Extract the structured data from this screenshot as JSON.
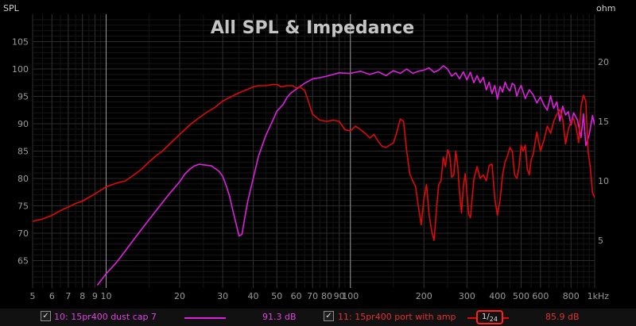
{
  "chart_data": {
    "type": "line",
    "title": "All SPL & Impedance",
    "ylabel_left": "SPL",
    "ylabel_right": "ohm",
    "x_scale": "log",
    "xlim": [
      5,
      1000
    ],
    "ylim_left": [
      60,
      110
    ],
    "ylim_right": [
      1,
      24
    ],
    "grid": true,
    "x_ticks": [
      {
        "v": 5,
        "label": "5"
      },
      {
        "v": 6,
        "label": "6"
      },
      {
        "v": 7,
        "label": "7"
      },
      {
        "v": 8,
        "label": "8"
      },
      {
        "v": 9,
        "label": "9"
      },
      {
        "v": 10,
        "label": "10"
      },
      {
        "v": 20,
        "label": "20"
      },
      {
        "v": 30,
        "label": "30"
      },
      {
        "v": 40,
        "label": "40"
      },
      {
        "v": 50,
        "label": "50"
      },
      {
        "v": 60,
        "label": "60"
      },
      {
        "v": 70,
        "label": "70"
      },
      {
        "v": 80,
        "label": "80"
      },
      {
        "v": 90,
        "label": "90"
      },
      {
        "v": 100,
        "label": "100"
      },
      {
        "v": 200,
        "label": "200"
      },
      {
        "v": 300,
        "label": "300"
      },
      {
        "v": 400,
        "label": "400"
      },
      {
        "v": 500,
        "label": "500"
      },
      {
        "v": 600,
        "label": "600"
      },
      {
        "v": 800,
        "label": "800"
      },
      {
        "v": 1000,
        "label": "1kHz"
      }
    ],
    "y_ticks_left": [
      "65",
      "70",
      "75",
      "80",
      "85",
      "90",
      "95",
      "100",
      "105"
    ],
    "y_ticks_right": [
      "5",
      "10",
      "15",
      "20"
    ],
    "series": [
      {
        "name": "10: 15pr400 dust cap 7",
        "axis": "left",
        "color": "#e020e0",
        "x": [
          9.2,
          10,
          11,
          12,
          13,
          15,
          17,
          18,
          20,
          21,
          22,
          23,
          24,
          25,
          26,
          27,
          28,
          29,
          30,
          31,
          32,
          33,
          34,
          35,
          36,
          37,
          38,
          40,
          42,
          45,
          48,
          50,
          53,
          55,
          57,
          60,
          65,
          70,
          75,
          80,
          90,
          100,
          110,
          120,
          130,
          140,
          150,
          160,
          170,
          180,
          190,
          200,
          210,
          220,
          230,
          240,
          250,
          260,
          270,
          280,
          290,
          300,
          310,
          320,
          330,
          340,
          350,
          360,
          370,
          380,
          390,
          400,
          410,
          420,
          430,
          440,
          450,
          460,
          470,
          480,
          490,
          500,
          520,
          540,
          560,
          580,
          600,
          620,
          640,
          660,
          680,
          700,
          720,
          740,
          760,
          780,
          800,
          820,
          850,
          880,
          900,
          920,
          950,
          980,
          1000
        ],
        "y": [
          60.5,
          62.6,
          64.6,
          66.8,
          68.9,
          72.5,
          75.6,
          77.0,
          79.4,
          80.8,
          81.7,
          82.3,
          82.6,
          82.5,
          82.4,
          82.3,
          81.8,
          81.3,
          80.4,
          78.7,
          76.8,
          74.2,
          71.8,
          69.5,
          69.8,
          73.0,
          75.8,
          80.0,
          84.0,
          87.8,
          90.5,
          92.3,
          93.5,
          94.8,
          95.6,
          96.3,
          97.4,
          98.2,
          98.4,
          98.7,
          99.3,
          99.2,
          99.6,
          99.0,
          99.5,
          98.8,
          99.7,
          99.2,
          100.0,
          99.2,
          99.6,
          99.8,
          100.2,
          99.4,
          99.8,
          100.6,
          100.0,
          98.7,
          99.3,
          98.2,
          99.5,
          98.0,
          99.4,
          97.5,
          98.8,
          97.5,
          98.5,
          96.2,
          97.6,
          95.5,
          97.0,
          94.5,
          96.8,
          95.8,
          97.6,
          96.5,
          96.0,
          97.4,
          97.0,
          95.0,
          96.2,
          97.0,
          94.6,
          96.2,
          95.3,
          93.8,
          94.9,
          93.4,
          92.5,
          95.1,
          92.8,
          94.0,
          90.5,
          93.2,
          91.6,
          92.2,
          89.8,
          92.0,
          90.7,
          87.5,
          91.8,
          86.0,
          88.0,
          91.5,
          89.8
        ]
      },
      {
        "name": "11: 15pr400 port with amp",
        "axis": "right",
        "color": "#e00808",
        "x": [
          5,
          5.5,
          6,
          6.5,
          7,
          7.5,
          8,
          9,
          10,
          11,
          12,
          13,
          14,
          15,
          16,
          17,
          18,
          20,
          22,
          24,
          26,
          28,
          30,
          32,
          35,
          38,
          40,
          42,
          45,
          48,
          50,
          52,
          55,
          58,
          60,
          62,
          65,
          67,
          70,
          72,
          75,
          80,
          85,
          90,
          95,
          100,
          105,
          110,
          115,
          120,
          125,
          130,
          135,
          140,
          145,
          150,
          155,
          160,
          165,
          170,
          175,
          180,
          185,
          190,
          195,
          200,
          205,
          210,
          215,
          220,
          225,
          230,
          235,
          240,
          245,
          250,
          255,
          260,
          265,
          270,
          275,
          280,
          285,
          290,
          295,
          300,
          305,
          310,
          320,
          330,
          340,
          350,
          360,
          370,
          380,
          390,
          400,
          410,
          420,
          430,
          440,
          450,
          460,
          470,
          480,
          490,
          500,
          510,
          520,
          530,
          540,
          550,
          560,
          570,
          580,
          600,
          620,
          640,
          660,
          680,
          700,
          720,
          740,
          760,
          780,
          800,
          820,
          840,
          860,
          880,
          900,
          920,
          940,
          960,
          980,
          1000
        ],
        "y": [
          6.6,
          6.8,
          7.1,
          7.5,
          7.8,
          8.1,
          8.3,
          8.9,
          9.5,
          9.8,
          10.0,
          10.5,
          11.0,
          11.6,
          12.1,
          12.5,
          13.0,
          13.9,
          14.7,
          15.3,
          15.8,
          16.2,
          16.7,
          17.0,
          17.4,
          17.7,
          17.9,
          18.0,
          18.0,
          18.1,
          18.1,
          17.9,
          18.0,
          18.0,
          17.8,
          17.9,
          17.6,
          16.8,
          15.6,
          15.4,
          15.1,
          15.0,
          15.1,
          15.0,
          14.3,
          14.2,
          14.6,
          14.3,
          14.0,
          13.6,
          13.9,
          13.3,
          12.9,
          12.8,
          13.0,
          13.2,
          14.1,
          15.2,
          15.0,
          12.5,
          10.6,
          10.0,
          9.5,
          7.8,
          6.3,
          8.5,
          9.7,
          7.2,
          5.8,
          5.0,
          7.6,
          9.7,
          10.0,
          12.0,
          11.2,
          12.6,
          12.2,
          10.3,
          10.5,
          12.5,
          11.3,
          9.0,
          7.3,
          9.5,
          10.6,
          9.0,
          7.2,
          6.9,
          10.1,
          11.2,
          10.2,
          10.5,
          10.0,
          11.3,
          11.4,
          8.5,
          7.1,
          8.4,
          10.5,
          11.6,
          12.1,
          12.8,
          12.5,
          10.5,
          10.2,
          11.1,
          13.0,
          12.5,
          13.0,
          11.0,
          10.5,
          11.8,
          12.2,
          13.2,
          14.1,
          12.5,
          13.4,
          14.6,
          14.0,
          15.0,
          15.6,
          16.0,
          15.2,
          13.1,
          14.3,
          15.0,
          15.2,
          14.5,
          13.2,
          16.3,
          17.2,
          16.7,
          12.5,
          11.1,
          9.0,
          8.6
        ]
      }
    ],
    "legend": {
      "items": [
        {
          "label": "10: 15pr400 dust cap 7",
          "value": "91.3 dB",
          "checked": "✓",
          "color": "#e020e0"
        },
        {
          "label": "11: 15pr400 port with amp",
          "value": "85.9 dB",
          "checked": "✓",
          "color": "#e00808"
        }
      ],
      "smoothing": {
        "num": "1",
        "den": "24"
      }
    }
  }
}
